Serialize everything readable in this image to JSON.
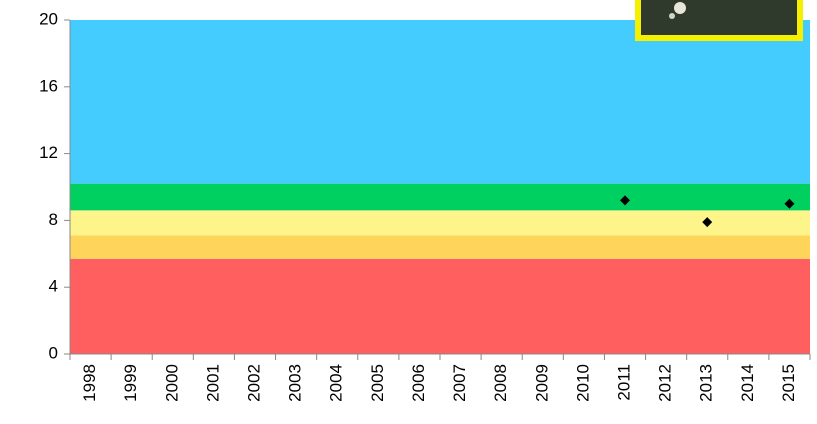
{
  "chart_data": {
    "type": "scatter",
    "categories": [
      "1998",
      "1999",
      "2000",
      "2001",
      "2002",
      "2003",
      "2004",
      "2005",
      "2006",
      "2007",
      "2008",
      "2009",
      "2010",
      "2011",
      "2012",
      "2013",
      "2014",
      "2015"
    ],
    "values": [
      null,
      null,
      null,
      null,
      null,
      null,
      null,
      null,
      null,
      null,
      null,
      null,
      null,
      9.2,
      null,
      7.9,
      null,
      9.0
    ],
    "color": "#000000",
    "bands": [
      {
        "from": 0,
        "to": 5.7,
        "color": "#ff5f5f"
      },
      {
        "from": 5.7,
        "to": 7.1,
        "color": "#ffd45a"
      },
      {
        "from": 7.1,
        "to": 8.6,
        "color": "#fdf58a"
      },
      {
        "from": 8.6,
        "to": 10.2,
        "color": "#00d060"
      },
      {
        "from": 10.2,
        "to": 20,
        "color": "#45ccff"
      }
    ],
    "ylim": [
      0,
      20
    ],
    "yticks": [
      0,
      4,
      8,
      12,
      16,
      20
    ]
  }
}
